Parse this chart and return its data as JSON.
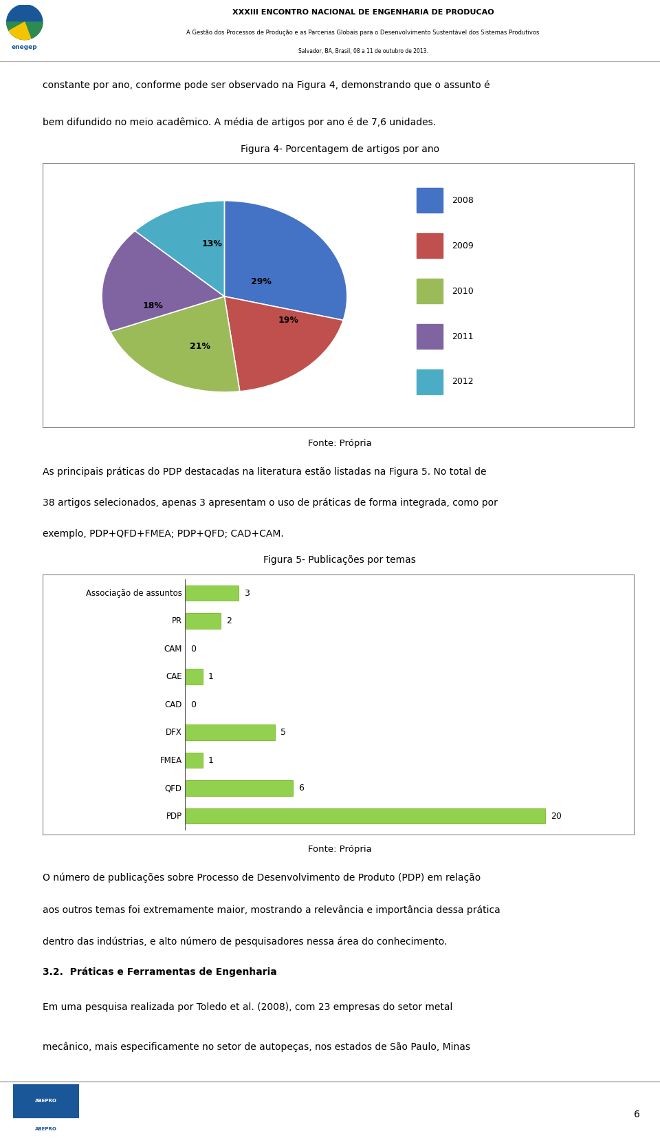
{
  "header_title": "XXXIII ENCONTRO NACIONAL DE ENGENHARIA DE PRODUCAO",
  "header_subtitle": "A Gestão dos Processos de Produção e as Parcerias Globais para o Desenvolvimento Sustentável dos Sistemas Produtivos",
  "header_location": "Salvador, BA, Brasil, 08 a 11 de outubro de 2013.",
  "page_number": "6",
  "text1_line1": "constante por ano, conforme pode ser observado na Figura 4, demonstrando que o assunto é",
  "text1_line2": "bem difundido no meio acadêmico. A média de artigos por ano é de 7,6 unidades.",
  "fig4_title": "Figura 4- Porcentagem de artigos por ano",
  "pie_labels": [
    "29%",
    "19%",
    "21%",
    "18%",
    "13%"
  ],
  "pie_values": [
    29,
    19,
    21,
    18,
    13
  ],
  "pie_colors": [
    "#4472C4",
    "#C0504D",
    "#9BBB59",
    "#8064A2",
    "#4BACC6"
  ],
  "pie_legend_labels": [
    "2008",
    "2009",
    "2010",
    "2011",
    "2012"
  ],
  "fonte1": "Fonte: Própria",
  "text2_line1": "As principais práticas do PDP destacadas na literatura estão listadas na Figura 5. No total de",
  "text2_line2": "38 artigos selecionados, apenas 3 apresentam o uso de práticas de forma integrada, como por",
  "text2_line3": "exemplo, PDP+QFD+FMEA; PDP+QFD; CAD+CAM.",
  "fig5_title": "Figura 5- Publicações por temas",
  "bar_categories": [
    "Associação de assuntos",
    "PR",
    "CAM",
    "CAE",
    "CAD",
    "DFX",
    "FMEA",
    "QFD",
    "PDP"
  ],
  "bar_values": [
    3,
    2,
    0,
    1,
    0,
    5,
    1,
    6,
    20
  ],
  "bar_color": "#92D050",
  "bar_edge_color": "#6AAB00",
  "fonte2": "Fonte: Própria",
  "text3_line1": "O número de publicações sobre Processo de Desenvolvimento de Produto (PDP) em relação",
  "text3_line2": "aos outros temas foi extremamente maior, mostrando a relevância e importância dessa prática",
  "text3_line3": "dentro das indústrias, e alto número de pesquisadores nessa área do conhecimento.",
  "section_title": "3.2.  Práticas e Ferramentas de Engenharia",
  "text4_line1": "Em uma pesquisa realizada por Toledo et al. (2008), com 23 empresas do setor metal",
  "text4_line2": "mecânico, mais especificamente no setor de autopeças, nos estados de São Paulo, Minas"
}
